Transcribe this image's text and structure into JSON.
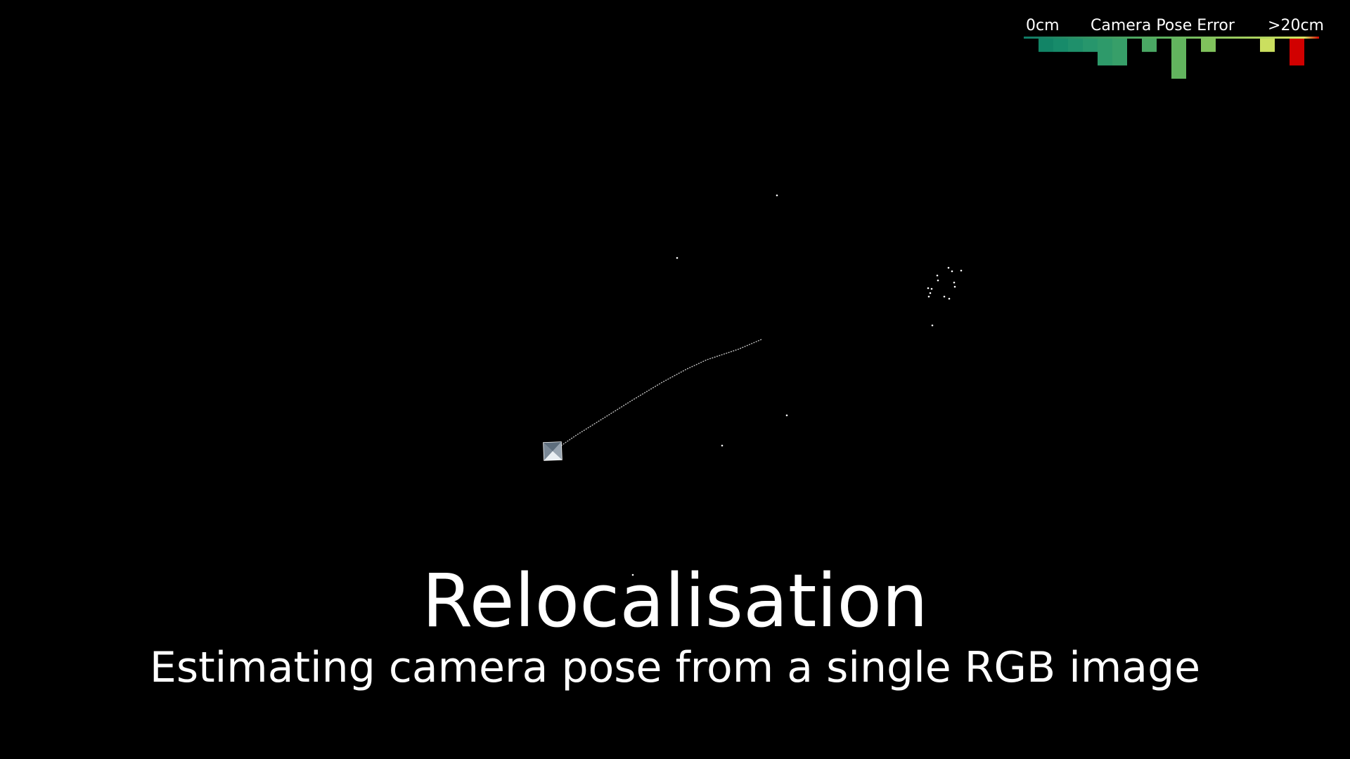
{
  "legend": {
    "min_label": "0cm",
    "title": "Camera Pose Error",
    "max_label": ">20cm",
    "colors": {
      "low": "#1a8a6e",
      "mid": "#6dbd5a",
      "high": "#d8e65e",
      "max": "#d10000"
    },
    "histogram": [
      {
        "bin": 1,
        "value": 0.0,
        "color": "#0f7a66"
      },
      {
        "bin": 2,
        "value": 0.33,
        "color": "#128466"
      },
      {
        "bin": 3,
        "value": 0.33,
        "color": "#178b6a"
      },
      {
        "bin": 4,
        "value": 0.33,
        "color": "#1f906b"
      },
      {
        "bin": 5,
        "value": 0.33,
        "color": "#27966c"
      },
      {
        "bin": 6,
        "value": 0.67,
        "color": "#2e9a6a"
      },
      {
        "bin": 7,
        "value": 0.67,
        "color": "#379f69"
      },
      {
        "bin": 8,
        "value": 0.0,
        "color": "#40a366"
      },
      {
        "bin": 9,
        "value": 0.33,
        "color": "#4aa864"
      },
      {
        "bin": 10,
        "value": 0.0,
        "color": "#55ad62"
      },
      {
        "bin": 11,
        "value": 1.0,
        "color": "#62b45e"
      },
      {
        "bin": 12,
        "value": 0.0,
        "color": "#70bb5c"
      },
      {
        "bin": 13,
        "value": 0.33,
        "color": "#80c25c"
      },
      {
        "bin": 14,
        "value": 0.0,
        "color": "#93c95d"
      },
      {
        "bin": 15,
        "value": 0.0,
        "color": "#a6d05e"
      },
      {
        "bin": 16,
        "value": 0.0,
        "color": "#b8d75e"
      },
      {
        "bin": 17,
        "value": 0.33,
        "color": "#cbdf5f"
      },
      {
        "bin": 18,
        "value": 0.0,
        "color": "#d6e45f"
      },
      {
        "bin": 19,
        "value": 0.67,
        "color": "#d10000"
      }
    ]
  },
  "scene": {
    "trajectory_color": "#bfbfbf",
    "point_color": "#ffffff"
  },
  "caption": {
    "title": "Relocalisation",
    "subtitle": "Estimating camera pose from a single RGB image"
  }
}
